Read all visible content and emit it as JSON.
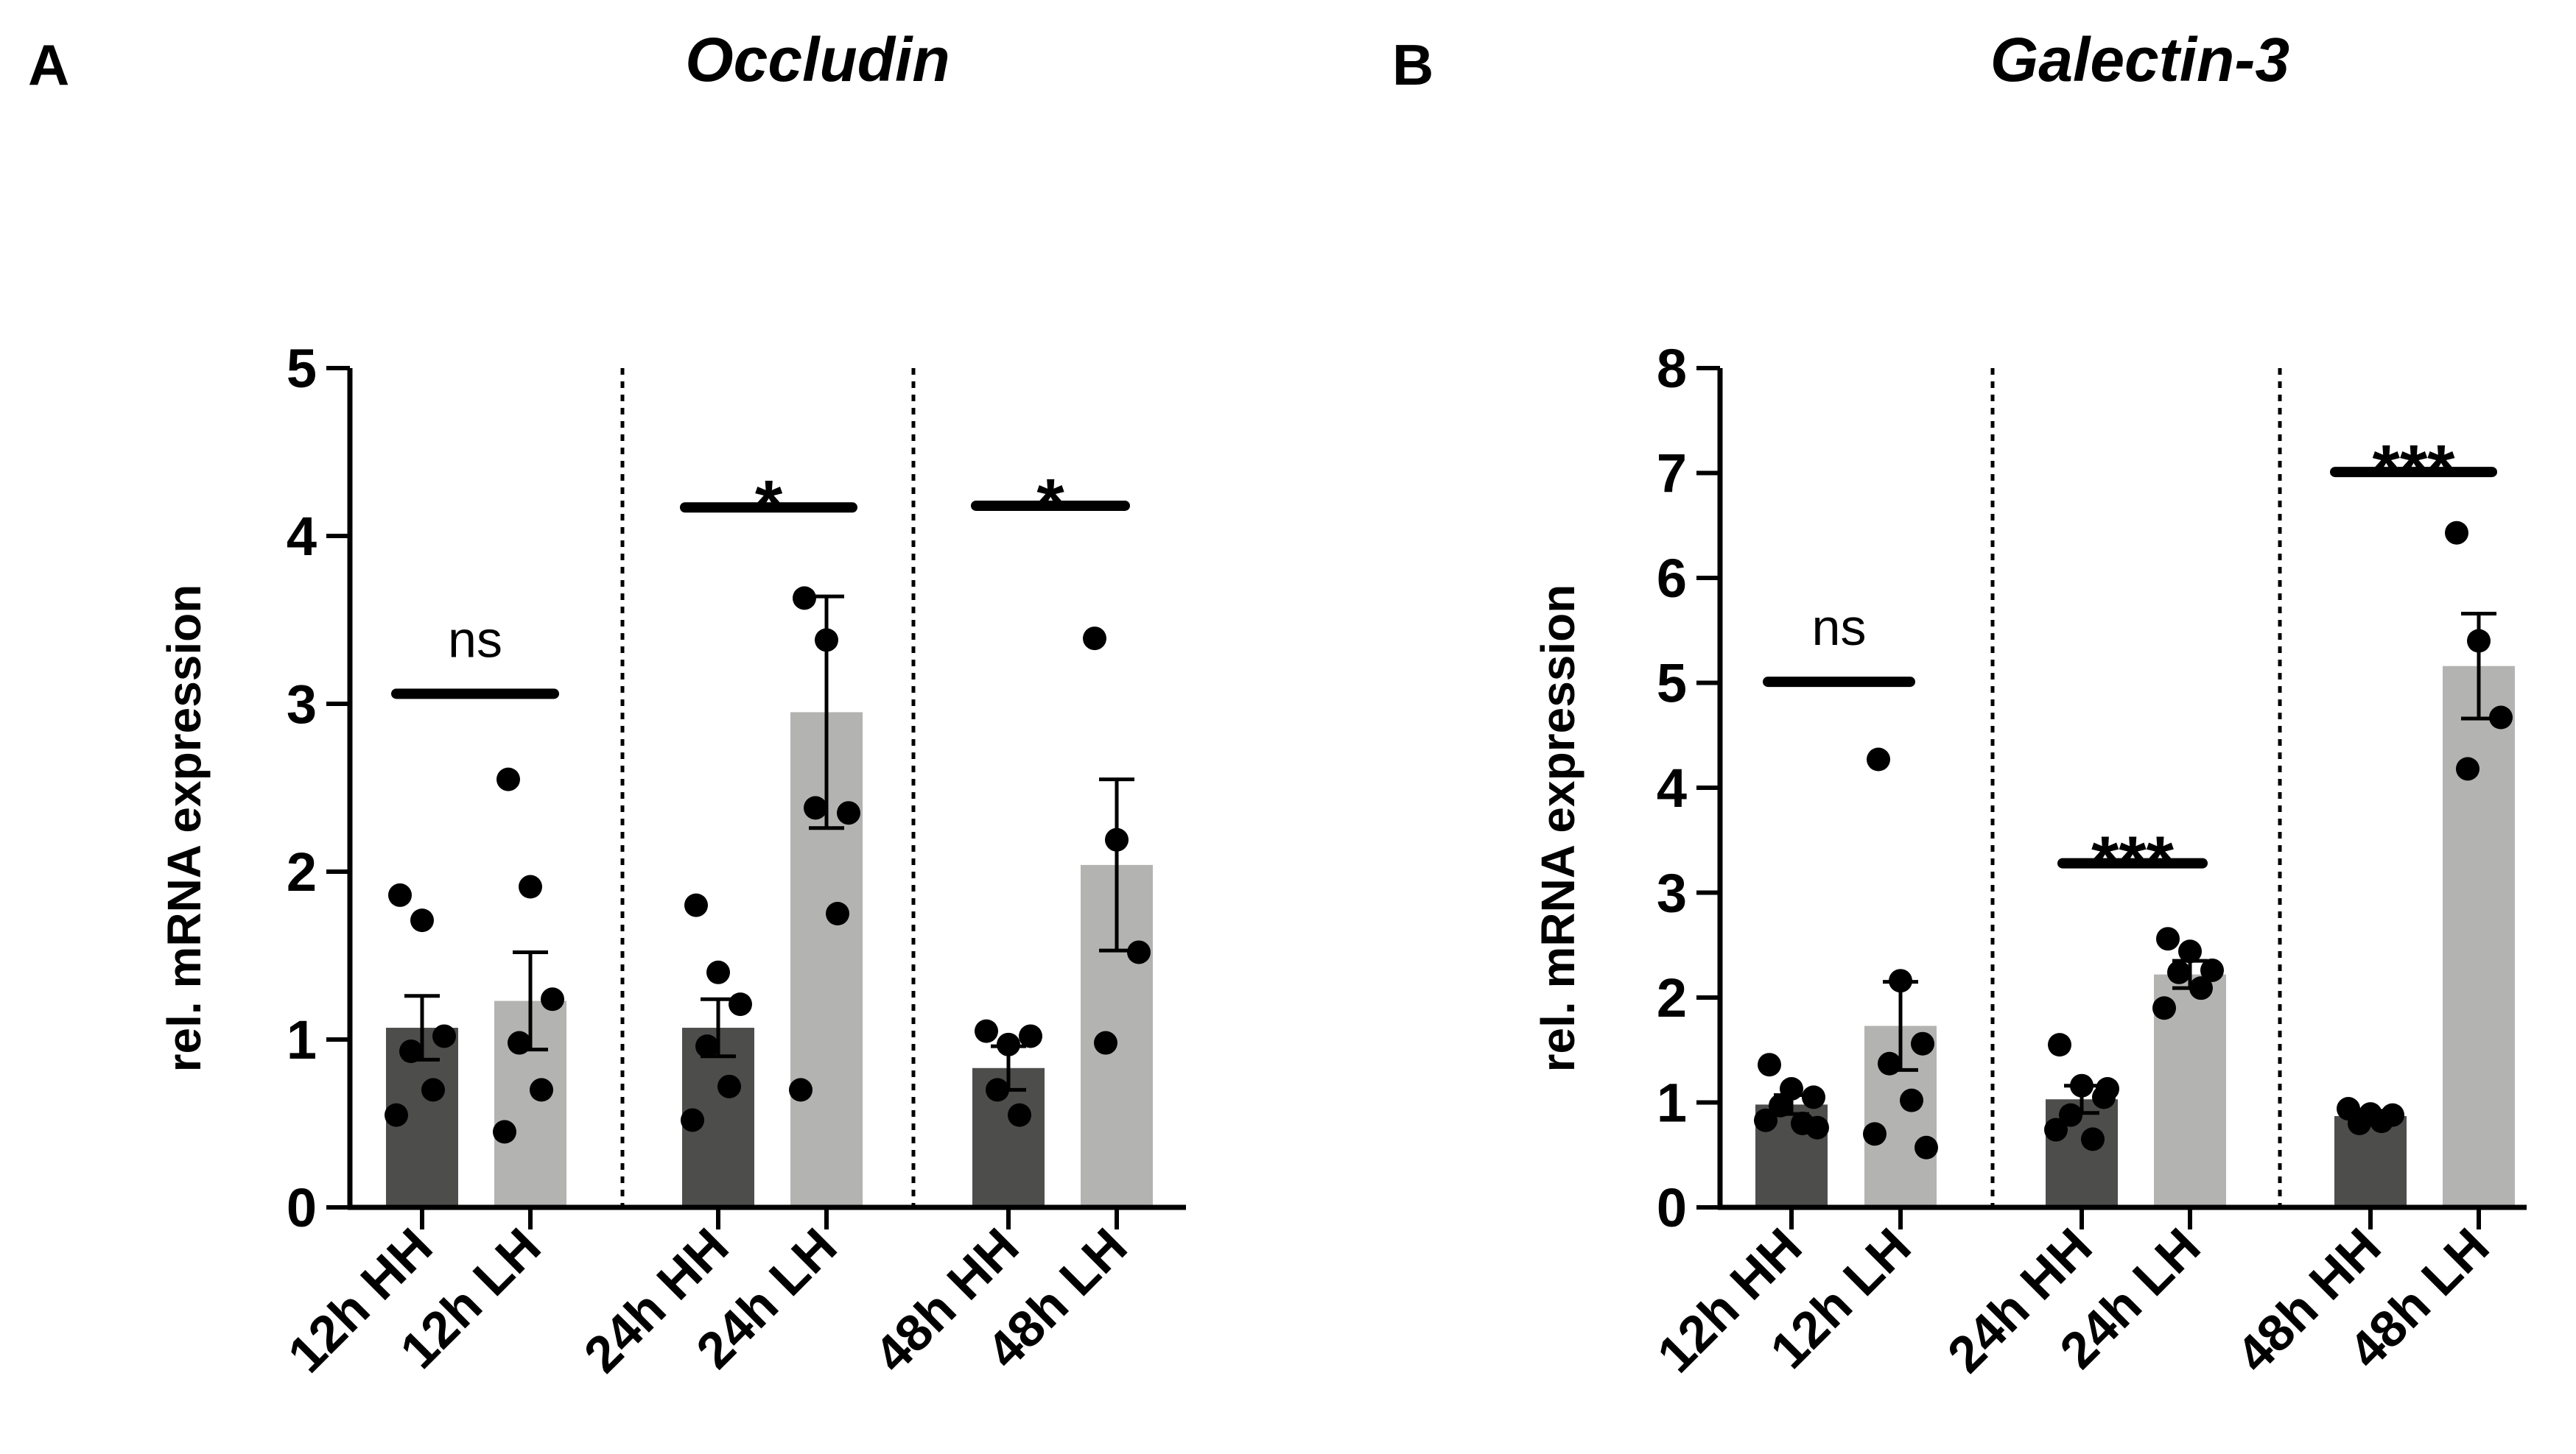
{
  "chart_data": [
    {
      "panel": "A",
      "type": "bar",
      "title": "Occludin",
      "ylabel": "rel. mRNA expression",
      "xlabel": "",
      "ylim": [
        0,
        5
      ],
      "yticks": [
        0,
        1,
        2,
        3,
        4,
        5
      ],
      "ytick_labels": [
        "0",
        "1",
        "2",
        "3",
        "4",
        "5"
      ],
      "categories": [
        "12h HH",
        "12h LH",
        "24h HH",
        "24h LH",
        "48h HH",
        "48h LH"
      ],
      "values": [
        1.07,
        1.23,
        1.07,
        2.95,
        0.83,
        2.04
      ],
      "errors": [
        0.19,
        0.29,
        0.17,
        0.69,
        0.13,
        0.51
      ],
      "bar_colors": [
        "#4d4d4c",
        "#b3b3b2",
        "#4d4d4c",
        "#b3b3b2",
        "#4d4d4c",
        "#b3b3b2"
      ],
      "points": [
        [
          1.86,
          1.71,
          1.02,
          0.93,
          0.7,
          0.55
        ],
        [
          2.55,
          1.91,
          1.24,
          0.98,
          0.7,
          0.45
        ],
        [
          1.8,
          1.4,
          1.21,
          0.96,
          0.72,
          0.52
        ],
        [
          3.63,
          3.38,
          2.35,
          2.38,
          1.75,
          0.7
        ],
        [
          1.05,
          0.97,
          1.02,
          0.7,
          0.55
        ],
        [
          3.39,
          2.19,
          1.52,
          0.98
        ]
      ],
      "significance": [
        {
          "label": "ns",
          "y": 3.06,
          "bold": false
        },
        {
          "label": "*",
          "y": 4.17,
          "bold": true
        },
        {
          "label": "*",
          "y": 4.18,
          "bold": true
        }
      ]
    },
    {
      "panel": "B",
      "type": "bar",
      "title": "Galectin-3",
      "ylabel": "rel. mRNA expression",
      "xlabel": "",
      "ylim": [
        0,
        8
      ],
      "yticks": [
        0,
        1,
        2,
        3,
        4,
        5,
        6,
        7,
        8
      ],
      "ytick_labels": [
        "0",
        "1",
        "2",
        "3",
        "4",
        "5",
        "6",
        "7",
        "8"
      ],
      "categories": [
        "12h HH",
        "12h LH",
        "24h HH",
        "24h LH",
        "48h HH",
        "48h LH"
      ],
      "values": [
        0.98,
        1.73,
        1.03,
        2.22,
        0.87,
        5.16
      ],
      "errors": [
        0.09,
        0.42,
        0.13,
        0.13,
        0.05,
        0.5
      ],
      "bar_colors": [
        "#4d4d4c",
        "#b3b3b2",
        "#4d4d4c",
        "#b3b3b2",
        "#4d4d4c",
        "#b3b3b2"
      ],
      "points": [
        [
          1.36,
          1.13,
          1.05,
          0.97,
          0.8,
          0.83,
          0.76
        ],
        [
          4.27,
          2.16,
          1.56,
          1.37,
          1.02,
          0.7,
          0.57
        ],
        [
          1.55,
          1.16,
          1.05,
          0.88,
          0.65,
          0.74,
          1.13
        ],
        [
          2.56,
          2.44,
          2.26,
          2.24,
          2.09,
          1.9
        ],
        [
          0.94,
          0.89,
          0.88,
          0.8,
          0.82
        ],
        [
          6.43,
          5.4,
          4.67,
          4.18
        ]
      ],
      "significance": [
        {
          "label": "ns",
          "y": 5.01,
          "bold": false
        },
        {
          "label": "***",
          "y": 3.28,
          "bold": true
        },
        {
          "label": "***",
          "y": 7.01,
          "bold": true
        }
      ]
    }
  ]
}
